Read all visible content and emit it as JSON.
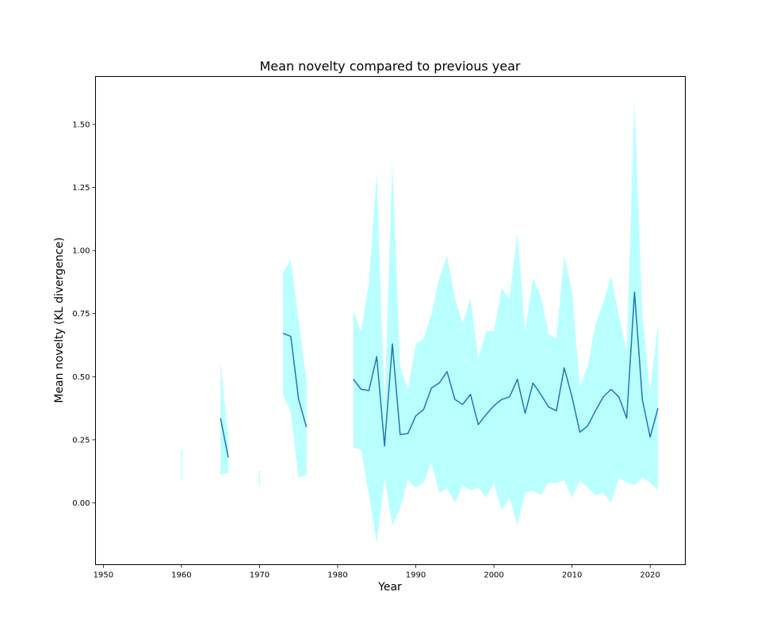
{
  "chart_data": {
    "type": "line",
    "title": "Mean novelty compared to previous year",
    "xlabel": "Year",
    "ylabel": "Mean novelty (KL divergence)",
    "xlim": [
      1949,
      2024.5
    ],
    "ylim": [
      -0.245,
      1.69
    ],
    "x_ticks": [
      1950,
      1960,
      1970,
      1980,
      1990,
      2000,
      2010,
      2020
    ],
    "x_tick_labels": [
      "1950",
      "1960",
      "1970",
      "1980",
      "1990",
      "2000",
      "2010",
      "2020"
    ],
    "y_ticks": [
      0.0,
      0.25,
      0.5,
      0.75,
      1.0,
      1.25,
      1.5
    ],
    "y_tick_labels": [
      "0.00",
      "0.25",
      "0.50",
      "0.75",
      "1.00",
      "1.25",
      "1.50"
    ],
    "grid": false,
    "colors": {
      "line": "#1f77b4",
      "band": "#baffff"
    },
    "band_segments": [
      {
        "x": [
          1960
        ],
        "lower": [
          0.09
        ],
        "upper": [
          0.21
        ]
      },
      {
        "x": [
          1965,
          1966
        ],
        "lower": [
          0.11,
          0.12
        ],
        "upper": [
          0.56,
          0.25
        ]
      },
      {
        "x": [
          1970
        ],
        "lower": [
          0.07
        ],
        "upper": [
          0.13
        ]
      },
      {
        "x": [
          1973,
          1974,
          1975,
          1976
        ],
        "lower": [
          0.43,
          0.36,
          0.1,
          0.11
        ],
        "upper": [
          0.91,
          0.965,
          0.72,
          0.49
        ]
      },
      {
        "x": [
          1982,
          1983,
          1984,
          1985,
          1986,
          1987,
          1988,
          1989,
          1990,
          1991,
          1992,
          1993,
          1994,
          1995,
          1996,
          1997,
          1998,
          1999,
          2000,
          2001,
          2002,
          2003,
          2004,
          2005,
          2006,
          2007,
          2008,
          2009,
          2010,
          2011,
          2012,
          2013,
          2014,
          2015,
          2016,
          2017,
          2018,
          2019,
          2020,
          2021
        ],
        "lower": [
          0.22,
          0.21,
          0.03,
          -0.16,
          0.1,
          -0.09,
          -0.02,
          0.09,
          0.06,
          0.08,
          0.16,
          0.04,
          0.06,
          0.0,
          0.07,
          0.05,
          0.06,
          0.02,
          0.08,
          -0.03,
          0.02,
          -0.09,
          0.04,
          0.05,
          0.03,
          0.08,
          0.08,
          0.09,
          0.02,
          0.09,
          0.06,
          0.03,
          0.04,
          0.0,
          0.1,
          0.08,
          0.07,
          0.1,
          0.08,
          0.05
        ],
        "upper": [
          0.76,
          0.68,
          0.87,
          1.31,
          0.38,
          1.35,
          0.54,
          0.45,
          0.63,
          0.65,
          0.75,
          0.89,
          0.98,
          0.81,
          0.71,
          0.81,
          0.57,
          0.68,
          0.68,
          0.85,
          0.81,
          1.07,
          0.68,
          0.89,
          0.82,
          0.67,
          0.65,
          0.98,
          0.84,
          0.46,
          0.54,
          0.71,
          0.79,
          0.9,
          0.74,
          0.6,
          1.6,
          0.75,
          0.44,
          0.71
        ]
      }
    ],
    "line_segments": [
      {
        "x": [
          1965,
          1966
        ],
        "y": [
          0.335,
          0.18
        ]
      },
      {
        "x": [
          1973,
          1974,
          1975,
          1976
        ],
        "y": [
          0.672,
          0.66,
          0.41,
          0.3
        ]
      },
      {
        "x": [
          1982,
          1983,
          1984,
          1985,
          1986,
          1987,
          1988,
          1989,
          1990,
          1991,
          1992,
          1993,
          1994,
          1995,
          1996,
          1997,
          1998,
          1999,
          2000,
          2001,
          2002,
          2003,
          2004,
          2005,
          2006,
          2007,
          2008,
          2009,
          2010,
          2011,
          2012,
          2013,
          2014,
          2015,
          2016,
          2017,
          2018,
          2019,
          2020,
          2021
        ],
        "y": [
          0.49,
          0.45,
          0.445,
          0.58,
          0.225,
          0.63,
          0.27,
          0.275,
          0.345,
          0.37,
          0.455,
          0.475,
          0.52,
          0.41,
          0.39,
          0.43,
          0.31,
          0.35,
          0.385,
          0.41,
          0.42,
          0.49,
          0.355,
          0.475,
          0.43,
          0.38,
          0.365,
          0.535,
          0.42,
          0.28,
          0.305,
          0.365,
          0.42,
          0.45,
          0.42,
          0.335,
          0.835,
          0.41,
          0.26,
          0.375
        ]
      }
    ]
  }
}
